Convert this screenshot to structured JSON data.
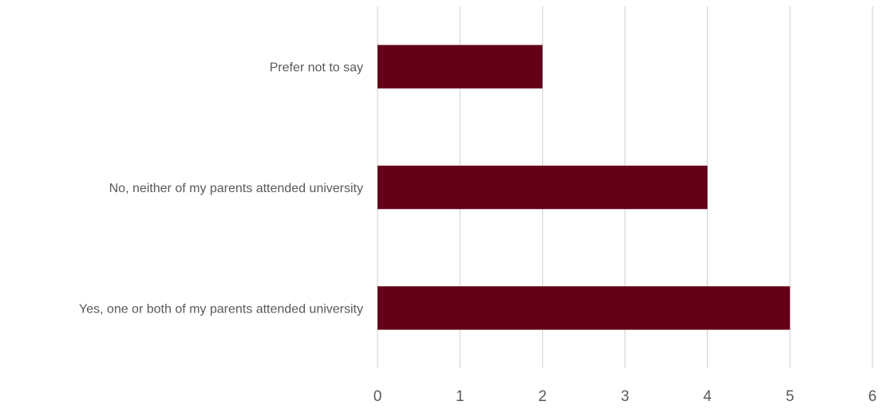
{
  "chart_data": {
    "type": "bar",
    "orientation": "horizontal",
    "categories": [
      "Yes, one or both of my parents attended university",
      "No, neither of my parents attended university",
      "Prefer not to say"
    ],
    "values": [
      5,
      4,
      2
    ],
    "title": "",
    "xlabel": "",
    "ylabel": "",
    "xlim": [
      0,
      6
    ],
    "xticks": [
      "0",
      "1",
      "2",
      "3",
      "4",
      "5",
      "6"
    ],
    "grid": "vertical",
    "legend": "none",
    "colors": {
      "bar": "#640017",
      "grid": "#d9d9d9",
      "text": "#595959"
    }
  }
}
